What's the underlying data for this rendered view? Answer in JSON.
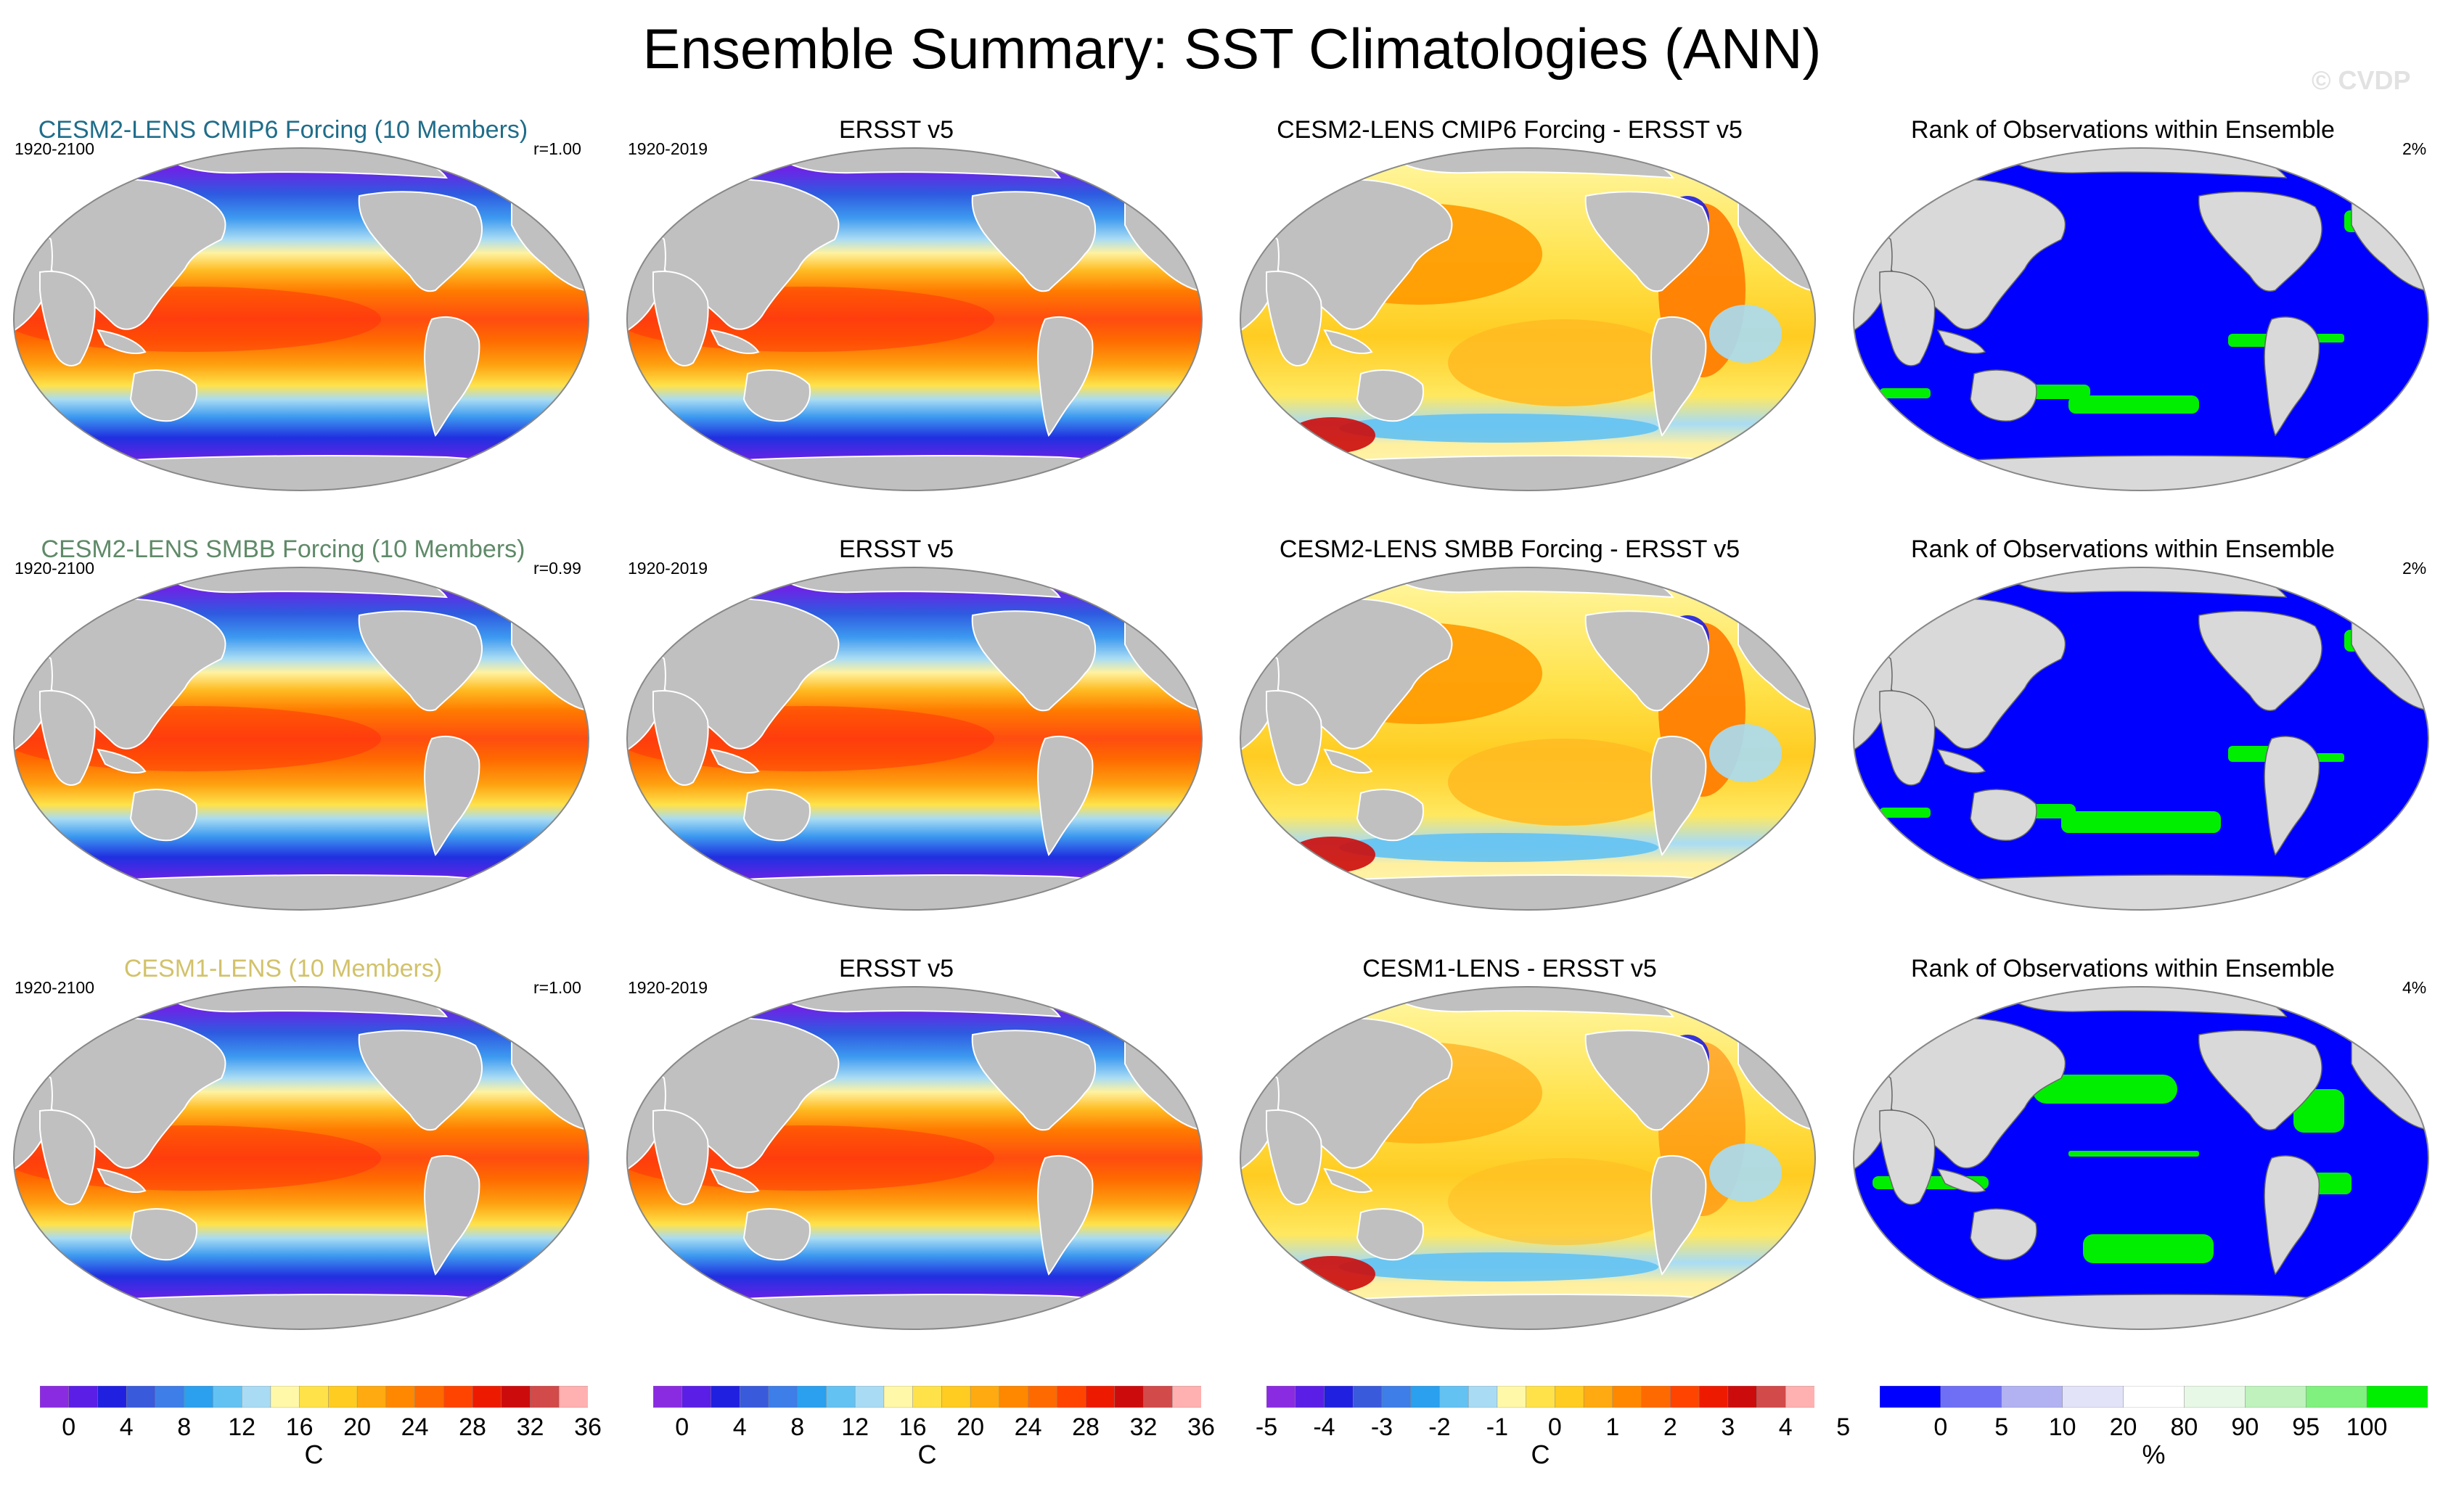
{
  "title": "Ensemble Summary: SST Climatologies (ANN)",
  "watermark": "© CVDP",
  "rows": [
    {
      "ensemble": {
        "title": "CESM2-LENS CMIP6 Forcing (10 Members)",
        "color": "#1f6d8a",
        "years": "1920-2100",
        "r": "r=1.00"
      },
      "obs": {
        "title": "ERSST v5",
        "years": "1920-2019"
      },
      "diff": {
        "title": "CESM2-LENS CMIP6 Forcing - ERSST v5"
      },
      "rank": {
        "title": "Rank of Observations within Ensemble",
        "pct": "2%"
      }
    },
    {
      "ensemble": {
        "title": "CESM2-LENS SMBB Forcing (10 Members)",
        "color": "#5f8a68",
        "years": "1920-2100",
        "r": "r=0.99"
      },
      "obs": {
        "title": "ERSST v5",
        "years": "1920-2019"
      },
      "diff": {
        "title": "CESM2-LENS SMBB Forcing - ERSST v5"
      },
      "rank": {
        "title": "Rank of Observations within Ensemble",
        "pct": "2%"
      }
    },
    {
      "ensemble": {
        "title": "CESM1-LENS (10 Members)",
        "color": "#d2c26a",
        "years": "1920-2100",
        "r": "r=1.00"
      },
      "obs": {
        "title": "ERSST v5",
        "years": "1920-2019"
      },
      "diff": {
        "title": "CESM1-LENS - ERSST v5"
      },
      "rank": {
        "title": "Rank of Observations within Ensemble",
        "pct": "4%"
      }
    }
  ],
  "colorbars": {
    "sst": {
      "unit": "C",
      "labels": [
        "0",
        "4",
        "8",
        "12",
        "16",
        "20",
        "24",
        "28",
        "32",
        "36"
      ],
      "colors": [
        "#8a2be2",
        "#5b1ee6",
        "#2020e0",
        "#3a5adc",
        "#3d7ee8",
        "#2aa0ee",
        "#63c2f2",
        "#a9dcf4",
        "#fff8a8",
        "#ffe24a",
        "#ffcc22",
        "#ffaa10",
        "#ff8800",
        "#ff6a00",
        "#ff4400",
        "#ee1a00",
        "#cc0c0c",
        "#d24a4a",
        "#ffb0b0"
      ]
    },
    "diff": {
      "unit": "C",
      "labels": [
        "-5",
        "-4",
        "-3",
        "-2",
        "-1",
        "0",
        "1",
        "2",
        "3",
        "4",
        "5"
      ],
      "colors": [
        "#8a2be2",
        "#5b1ee6",
        "#2020e0",
        "#3a5adc",
        "#3d7ee8",
        "#2aa0ee",
        "#63c2f2",
        "#a9dcf4",
        "#fff8a8",
        "#ffe24a",
        "#ffcc22",
        "#ffaa10",
        "#ff8800",
        "#ff6a00",
        "#ff4400",
        "#ee1a00",
        "#cc0c0c",
        "#d24a4a",
        "#ffb0b0"
      ]
    },
    "rank": {
      "unit": "%",
      "labels": [
        "0",
        "5",
        "10",
        "20",
        "80",
        "90",
        "95",
        "100"
      ],
      "colors": [
        "#0000ff",
        "#6f6ff5",
        "#b2b2f2",
        "#e2e2f8",
        "#ffffff",
        "#e8f8e6",
        "#bff2bc",
        "#80f07e",
        "#00ee00"
      ]
    }
  },
  "colors": {
    "land": "#c0c0c0",
    "rank_ocean": "#0000ff",
    "rank_green": "#00ee00",
    "rank_land": "#d9d9d9"
  }
}
